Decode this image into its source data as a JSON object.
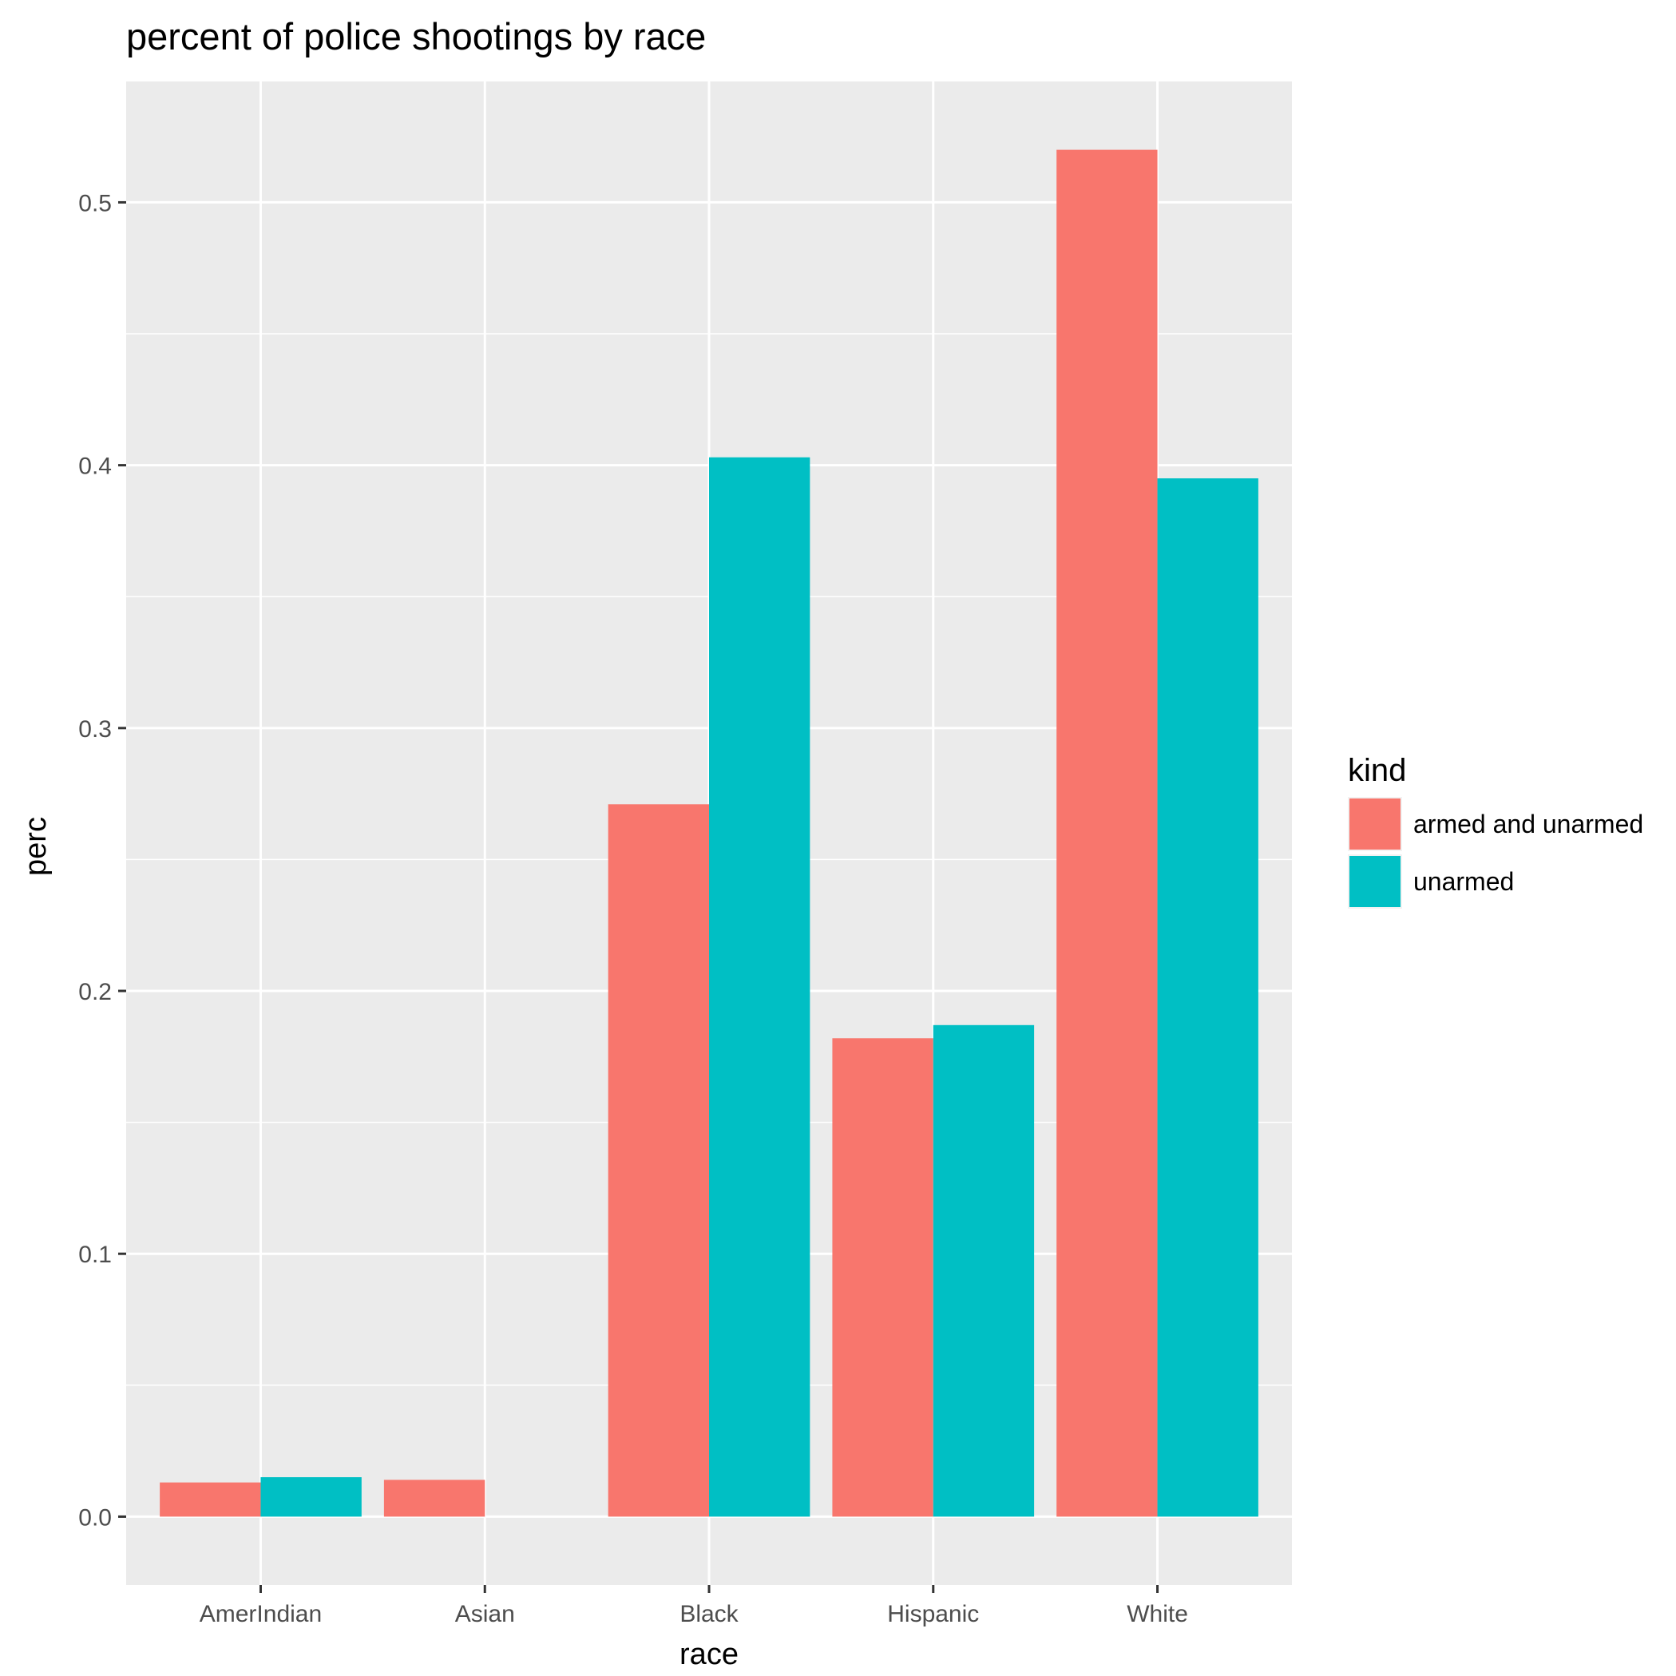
{
  "chart_data": {
    "type": "bar",
    "title": "percent of police shootings by race",
    "xlabel": "race",
    "ylabel": "perc",
    "categories": [
      "AmerIndian",
      "Asian",
      "Black",
      "Hispanic",
      "White"
    ],
    "series": [
      {
        "name": "armed and unarmed",
        "color": "#F8766D",
        "values": [
          0.013,
          0.014,
          0.271,
          0.182,
          0.52
        ]
      },
      {
        "name": "unarmed",
        "color": "#00BFC4",
        "values": [
          0.015,
          0.0,
          0.403,
          0.187,
          0.395
        ]
      }
    ],
    "ylim": [
      -0.026,
      0.546
    ],
    "yticks": [
      0.0,
      0.1,
      0.2,
      0.3,
      0.4,
      0.5
    ],
    "ytick_labels": [
      "0.0",
      "0.1",
      "0.2",
      "0.3",
      "0.4",
      "0.5"
    ],
    "legend": {
      "title": "kind",
      "placement": "right"
    },
    "grid": true,
    "panel_background": "#EBEBEB",
    "grid_color": "#FFFFFF"
  }
}
